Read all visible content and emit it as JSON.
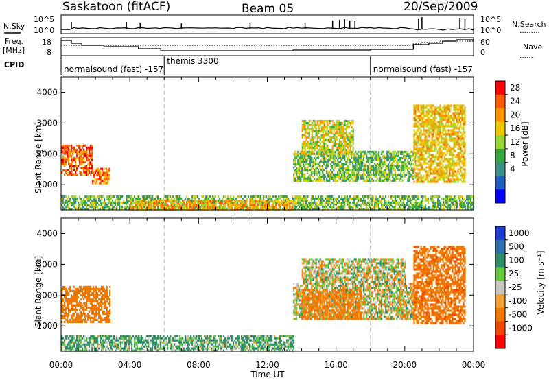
{
  "header": {
    "radar": "Saskatoon (fitACF)",
    "beam": "Beam 05",
    "date": "20/Sep/2009"
  },
  "summary_panels": {
    "nsky_label": "N.Sky",
    "nsky_ticks": [
      "10^5",
      "10^0"
    ],
    "nsearch_label": "N.Search",
    "freq_label_line1": "Freq.",
    "freq_label_line2": "[MHz]",
    "freq_ticks": [
      "18",
      "8"
    ],
    "nave_label": "Nave",
    "nave_ticks": [
      "60",
      "0"
    ],
    "cpid_label": "CPID",
    "cpid_segments": [
      {
        "text": "normalsound (fast) -157",
        "start_hour": 0,
        "end_hour": 6
      },
      {
        "text": "themis 3300",
        "start_hour": 6,
        "end_hour": 18
      },
      {
        "text": "normalsound (fast) -157",
        "start_hour": 18,
        "end_hour": 24
      }
    ]
  },
  "axes": {
    "xlabel": "Time UT",
    "x_ticks": [
      "00:00",
      "04:00",
      "08:00",
      "12:00",
      "16:00",
      "20:00",
      "00:00"
    ],
    "ylabel": "Slant Range [km]",
    "y_ticks": [
      "4000",
      "3000",
      "2000",
      "1000"
    ]
  },
  "colorbars": {
    "power_label": "Power [dB]",
    "power_ticks": [
      "28",
      "24",
      "20",
      "16",
      "12",
      "8",
      "4"
    ],
    "power_colors": [
      "#ff0000",
      "#ff5a00",
      "#ff9400",
      "#f2c800",
      "#9ed631",
      "#39a842",
      "#3e8f86",
      "#1c5ec0",
      "#0000ff"
    ],
    "velocity_label": "Velocity [m s⁻¹]",
    "velocity_ticks": [
      "1000",
      "500",
      "100",
      "25",
      "-25",
      "-100",
      "-500",
      "-1000"
    ],
    "velocity_colors": [
      "#1c3ad0",
      "#2e6fb0",
      "#2f8f6a",
      "#63c93d",
      "#c8c8c0",
      "#f0a030",
      "#f07800",
      "#f04800",
      "#ff0000"
    ]
  },
  "chart_data": {
    "type": "heatmap",
    "x_range_hours": [
      0,
      24
    ],
    "y_range_km": [
      180,
      4500
    ],
    "vertical_markers_hours": [
      6,
      18
    ],
    "panels": [
      {
        "quantity": "Power",
        "units": "dB",
        "scale_range": [
          0,
          32
        ],
        "echo_regions": [
          {
            "t0": 0.0,
            "t1": 1.8,
            "r0": 1300,
            "r1": 2300,
            "level": 26
          },
          {
            "t0": 1.8,
            "t1": 2.8,
            "r0": 1050,
            "r1": 1550,
            "level": 24
          },
          {
            "t0": 0.0,
            "t1": 24.0,
            "r0": 200,
            "r1": 650,
            "level": 14
          },
          {
            "t0": 4.0,
            "t1": 13.5,
            "r0": 200,
            "r1": 500,
            "level": 22
          },
          {
            "t0": 13.5,
            "t1": 20.5,
            "r0": 1150,
            "r1": 2100,
            "level": 14
          },
          {
            "t0": 14.0,
            "t1": 17.0,
            "r0": 2000,
            "r1": 3100,
            "level": 18
          },
          {
            "t0": 20.5,
            "t1": 23.5,
            "r0": 1100,
            "r1": 3600,
            "level": 20
          }
        ]
      },
      {
        "quantity": "Velocity",
        "units": "m s-1",
        "scale_range": [
          -1000,
          1000
        ],
        "echo_regions": [
          {
            "t0": 0.0,
            "t1": 2.8,
            "r0": 1100,
            "r1": 2300,
            "level": -300
          },
          {
            "t0": 0.0,
            "t1": 13.5,
            "r0": 200,
            "r1": 700,
            "level": 120
          },
          {
            "t0": 13.5,
            "t1": 20.5,
            "r0": 1200,
            "r1": 2400,
            "level": 0
          },
          {
            "t0": 14.0,
            "t1": 20.0,
            "r0": 2400,
            "r1": 3200,
            "level": 5
          },
          {
            "t0": 14.0,
            "t1": 17.5,
            "r0": 1200,
            "r1": 2200,
            "level": -200
          },
          {
            "t0": 20.5,
            "t1": 23.5,
            "r0": 1100,
            "r1": 3600,
            "level": -400
          }
        ]
      }
    ]
  }
}
